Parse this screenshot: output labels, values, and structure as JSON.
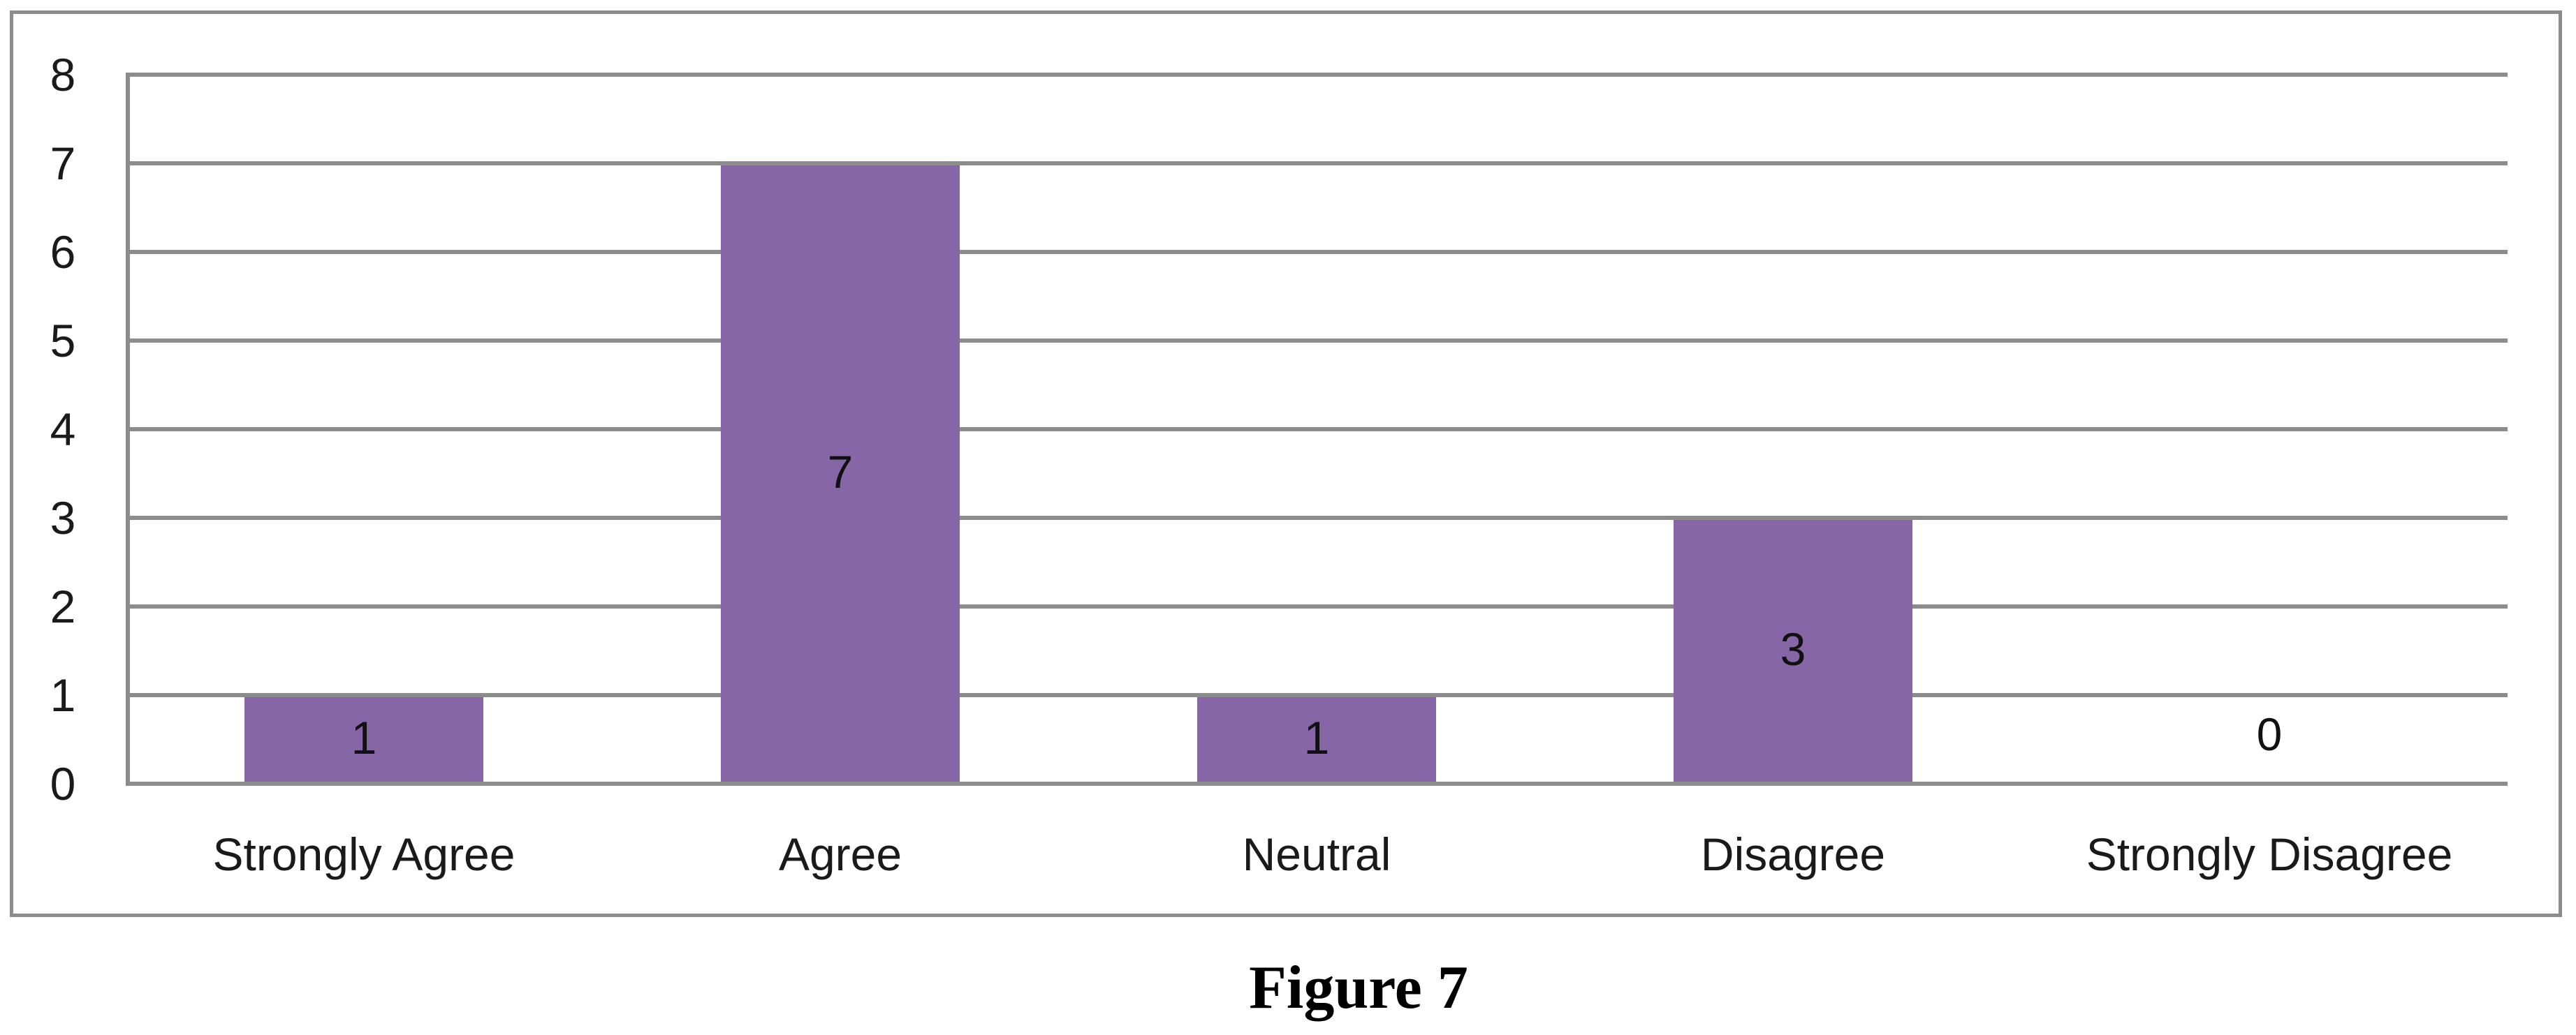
{
  "figure": {
    "caption": "Figure 7"
  },
  "chart_data": {
    "type": "bar",
    "title": "",
    "xlabel": "",
    "ylabel": "",
    "categories": [
      "Strongly Agree",
      "Agree",
      "Neutral",
      "Disagree",
      "Strongly Disagree"
    ],
    "values": [
      1,
      7,
      1,
      3,
      0
    ],
    "data_labels": [
      "1",
      "7",
      "1",
      "3",
      "0"
    ],
    "ylim": [
      0,
      8
    ],
    "yticks": [
      0,
      1,
      2,
      3,
      4,
      5,
      6,
      7,
      8
    ],
    "grid": "horizontal",
    "legend": "none",
    "series_name": "",
    "bar_color": "#8766a8",
    "grid_color": "#8c8c8c",
    "text_color": "#1a1a1a"
  }
}
